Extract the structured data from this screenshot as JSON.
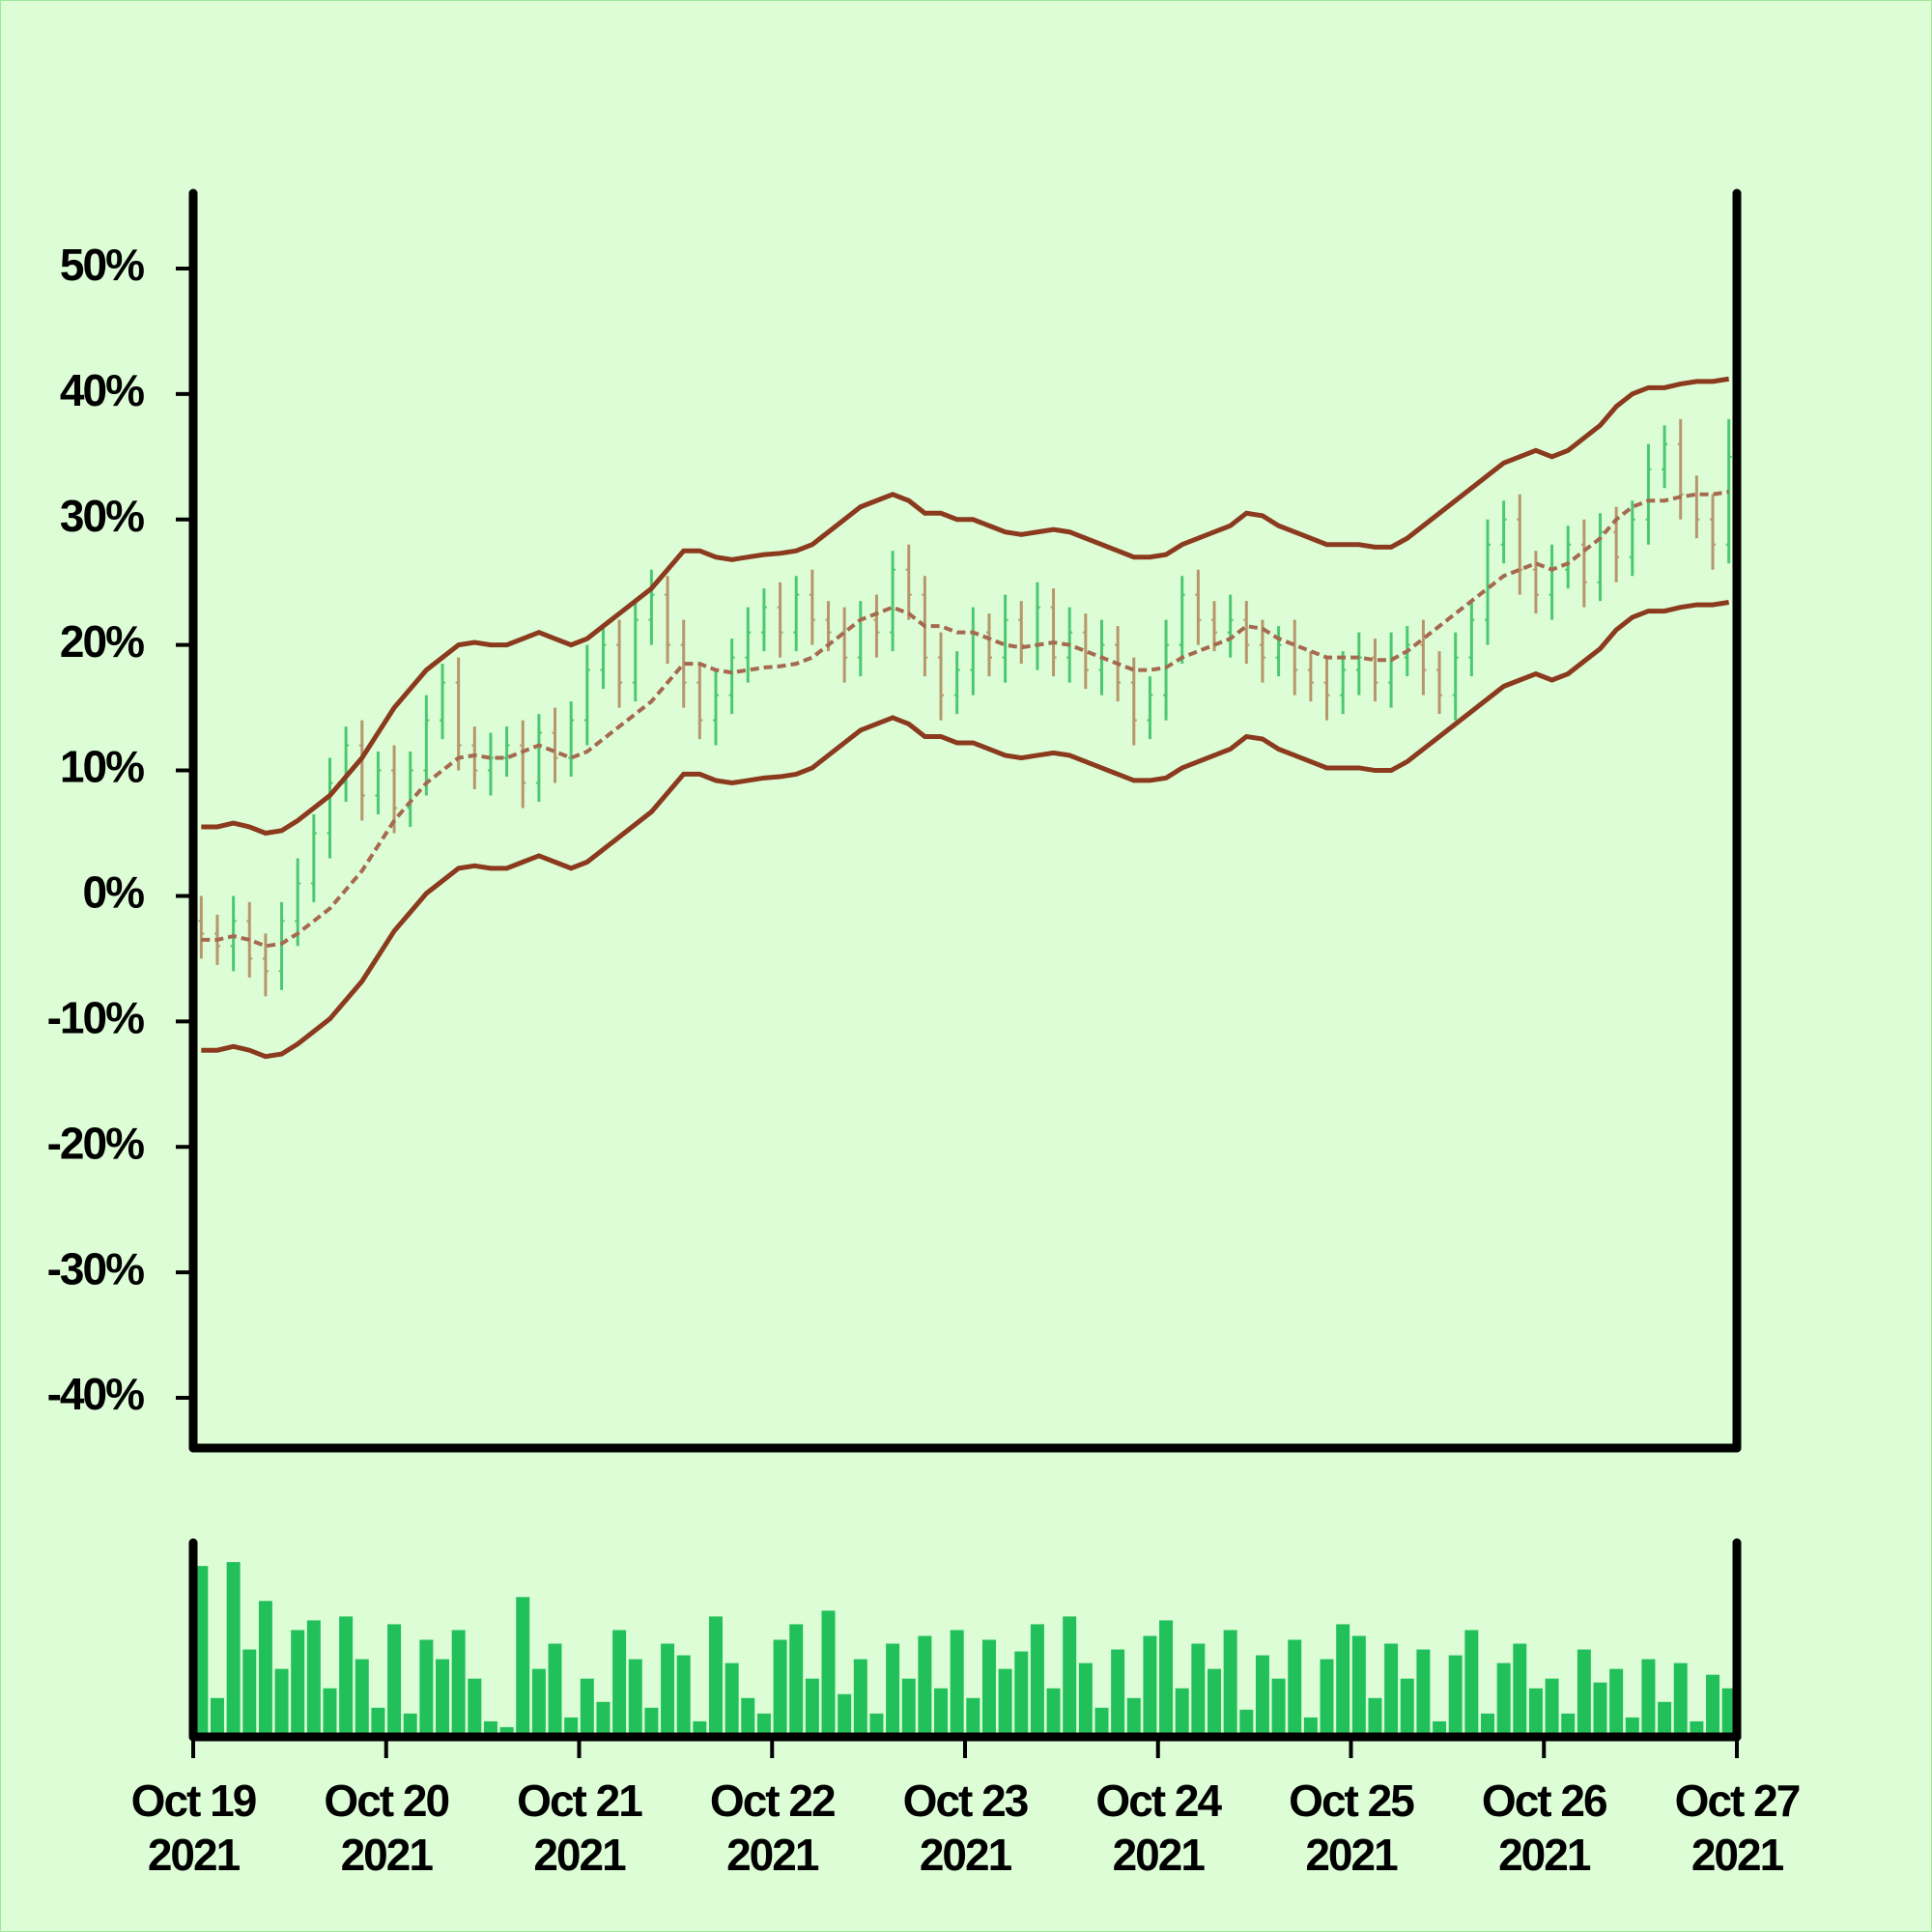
{
  "chart_data": {
    "type": "ohlc",
    "ylim": [
      -44,
      56
    ],
    "yticks": [
      {
        "value": -40,
        "label": "-40%"
      },
      {
        "value": -30,
        "label": "-30%"
      },
      {
        "value": -20,
        "label": "-20%"
      },
      {
        "value": -10,
        "label": "-10%"
      },
      {
        "value": 0,
        "label": "0%"
      },
      {
        "value": 10,
        "label": "10%"
      },
      {
        "value": 20,
        "label": "20%"
      },
      {
        "value": 30,
        "label": "30%"
      },
      {
        "value": 40,
        "label": "40%"
      },
      {
        "value": 50,
        "label": "50%"
      }
    ],
    "xlim": [
      0,
      8
    ],
    "xticks": [
      {
        "value": 0,
        "label": "Oct 19",
        "year": "2021"
      },
      {
        "value": 1,
        "label": "Oct 20",
        "year": "2021"
      },
      {
        "value": 2,
        "label": "Oct 21",
        "year": "2021"
      },
      {
        "value": 3,
        "label": "Oct 22",
        "year": "2021"
      },
      {
        "value": 4,
        "label": "Oct 23",
        "year": "2021"
      },
      {
        "value": 5,
        "label": "Oct 24",
        "year": "2021"
      },
      {
        "value": 6,
        "label": "Oct 25",
        "year": "2021"
      },
      {
        "value": 7,
        "label": "Oct 26",
        "year": "2021"
      },
      {
        "value": 8,
        "label": "Oct 27",
        "year": "2021"
      }
    ],
    "up_color": "#4cc873",
    "down_color": "#b8966c",
    "open": [
      -2,
      -3,
      -4,
      -2,
      -5,
      -6,
      -2,
      1,
      5,
      9,
      12,
      8,
      10,
      7,
      10,
      14,
      17,
      12,
      10,
      11,
      12,
      9,
      13,
      11,
      14,
      18,
      20,
      17,
      22,
      24,
      20,
      17,
      14,
      16,
      19,
      21,
      23,
      21,
      24,
      22,
      21,
      19,
      22,
      21,
      26,
      24,
      19,
      16,
      18,
      21,
      19,
      22,
      20,
      23,
      19,
      21,
      18,
      20,
      17,
      14,
      16,
      20,
      24,
      22,
      21,
      22,
      20,
      19,
      20,
      18,
      17,
      16,
      18,
      19,
      17,
      19,
      20,
      18,
      16,
      19,
      22,
      28,
      30,
      26,
      24,
      26,
      28,
      25,
      29,
      27,
      30,
      34,
      36,
      32,
      30,
      28
    ],
    "high": [
      0,
      -1.5,
      0,
      -0.5,
      -3,
      -0.5,
      3,
      6.5,
      11,
      13.5,
      14,
      11.5,
      12,
      11.5,
      16,
      18.5,
      19,
      13.5,
      13,
      13.5,
      14,
      14.5,
      15,
      15.5,
      20,
      21.5,
      22,
      23.5,
      26,
      25.5,
      22,
      18.5,
      18,
      20.5,
      23,
      24.5,
      25,
      25.5,
      26,
      23.5,
      23,
      23.5,
      24,
      27.5,
      28,
      25.5,
      21,
      19.5,
      23,
      22.5,
      24,
      23.5,
      25,
      24.5,
      23,
      22.5,
      22,
      21.5,
      19,
      17.5,
      22,
      25.5,
      26,
      23.5,
      24,
      23.5,
      22,
      21.5,
      22,
      19.5,
      19,
      19.5,
      21,
      20.5,
      21,
      21.5,
      22,
      19.5,
      21,
      23.5,
      30,
      31.5,
      32,
      27.5,
      28,
      29.5,
      30,
      30.5,
      31,
      31.5,
      36,
      37.5,
      38,
      33.5,
      32,
      38
    ],
    "low": [
      -5,
      -5.5,
      -6,
      -6.5,
      -8,
      -7.5,
      -4,
      -0.5,
      3,
      7.5,
      6,
      6.5,
      5,
      5.5,
      8,
      12.5,
      10,
      8.5,
      8,
      9.5,
      7,
      7.5,
      9,
      9.5,
      12,
      16.5,
      15,
      15.5,
      20,
      18.5,
      15,
      12.5,
      12,
      14.5,
      17,
      19.5,
      19,
      19.5,
      20,
      19.5,
      17,
      17.5,
      19,
      19.5,
      22,
      17.5,
      14,
      14.5,
      16,
      17.5,
      17,
      18.5,
      18,
      17.5,
      17,
      16.5,
      16,
      15.5,
      12,
      12.5,
      14,
      18.5,
      20,
      19.5,
      19,
      18.5,
      17,
      17.5,
      16,
      15.5,
      14,
      14.5,
      16,
      15.5,
      15,
      17.5,
      16,
      14.5,
      14,
      17.5,
      20,
      26.5,
      24,
      22.5,
      22,
      24.5,
      23,
      23.5,
      25,
      25.5,
      28,
      32.5,
      30,
      28.5,
      26,
      26.5
    ],
    "close": [
      -3,
      -4,
      -2,
      -5,
      -6,
      -2,
      1,
      5,
      9,
      12,
      8,
      10,
      7,
      10,
      14,
      17,
      12,
      10,
      11,
      12,
      9,
      13,
      11,
      14,
      18,
      20,
      17,
      22,
      24,
      20,
      17,
      14,
      16,
      19,
      21,
      23,
      21,
      24,
      22,
      21,
      19,
      22,
      21,
      26,
      24,
      19,
      16,
      18,
      21,
      19,
      22,
      20,
      23,
      19,
      21,
      18,
      20,
      17,
      14,
      16,
      20,
      24,
      22,
      21,
      22,
      20,
      19,
      20,
      18,
      17,
      16,
      18,
      19,
      17,
      19,
      20,
      18,
      16,
      19,
      22,
      28,
      30,
      26,
      24,
      26,
      28,
      25,
      29,
      27,
      30,
      34,
      36,
      32,
      30,
      28,
      35
    ],
    "overlays": [
      {
        "color": "#8b3a1e",
        "dashed": false,
        "values": [
          5.5,
          5.5,
          5.8,
          5.5,
          5,
          5.2,
          6,
          7,
          8,
          9.5,
          11,
          13,
          15,
          16.5,
          18,
          19,
          20,
          20.2,
          20,
          20,
          20.5,
          21,
          20.5,
          20,
          20.5,
          21.5,
          22.5,
          23.5,
          24.5,
          26,
          27.5,
          27.5,
          27,
          26.8,
          27,
          27.2,
          27.3,
          27.5,
          28,
          29,
          30,
          31,
          31.5,
          32,
          31.5,
          30.5,
          30.5,
          30,
          30,
          29.5,
          29,
          28.8,
          29,
          29.2,
          29,
          28.5,
          28,
          27.5,
          27,
          27,
          27.2,
          28,
          28.5,
          29,
          29.5,
          30.5,
          30.3,
          29.5,
          29,
          28.5,
          28,
          28,
          28,
          27.8,
          27.8,
          28.5,
          29.5,
          30.5,
          31.5,
          32.5,
          33.5,
          34.5,
          35,
          35.5,
          35,
          35.5,
          36.5,
          37.5,
          39,
          40,
          40.5,
          40.5,
          40.8,
          41,
          41,
          41.2
        ]
      },
      {
        "color": "#a5694f",
        "dashed": true,
        "values": [
          -3.5,
          -3.5,
          -3.2,
          -3.5,
          -4,
          -3.8,
          -3,
          -2,
          -1,
          0.5,
          2,
          4,
          6,
          7.5,
          9,
          10,
          11,
          11.2,
          11,
          11,
          11.5,
          12,
          11.5,
          11,
          11.5,
          12.5,
          13.5,
          14.5,
          15.5,
          17,
          18.5,
          18.5,
          18,
          17.8,
          18,
          18.2,
          18.3,
          18.5,
          19,
          20,
          21,
          22,
          22.5,
          23,
          22.5,
          21.5,
          21.5,
          21,
          21,
          20.5,
          20,
          19.8,
          20,
          20.2,
          20,
          19.5,
          19,
          18.5,
          18,
          18,
          18.2,
          19,
          19.5,
          20,
          20.5,
          21.5,
          21.3,
          20.5,
          20,
          19.5,
          19,
          19,
          19,
          18.8,
          18.8,
          19.5,
          20.5,
          21.5,
          22.5,
          23.5,
          24.5,
          25.5,
          26,
          26.5,
          26,
          26.5,
          27.5,
          28.5,
          30,
          31,
          31.5,
          31.5,
          31.8,
          32,
          32,
          32.2
        ]
      },
      {
        "color": "#8b3a1e",
        "dashed": false,
        "values": [
          -12.3,
          -12.3,
          -12,
          -12.3,
          -12.8,
          -12.6,
          -11.8,
          -10.8,
          -9.8,
          -8.3,
          -6.8,
          -4.8,
          -2.8,
          -1.3,
          0.2,
          1.2,
          2.2,
          2.4,
          2.2,
          2.2,
          2.7,
          3.2,
          2.7,
          2.2,
          2.7,
          3.7,
          4.7,
          5.7,
          6.7,
          8.2,
          9.7,
          9.7,
          9.2,
          9,
          9.2,
          9.4,
          9.5,
          9.7,
          10.2,
          11.2,
          12.2,
          13.2,
          13.7,
          14.2,
          13.7,
          12.7,
          12.7,
          12.2,
          12.2,
          11.7,
          11.2,
          11,
          11.2,
          11.4,
          11.2,
          10.7,
          10.2,
          9.7,
          9.2,
          9.2,
          9.4,
          10.2,
          10.7,
          11.2,
          11.7,
          12.7,
          12.5,
          11.7,
          11.2,
          10.7,
          10.2,
          10.2,
          10.2,
          10,
          10,
          10.7,
          11.7,
          12.7,
          13.7,
          14.7,
          15.7,
          16.7,
          17.2,
          17.7,
          17.2,
          17.7,
          18.7,
          19.7,
          21.2,
          22.2,
          22.7,
          22.7,
          23,
          23.2,
          23.2,
          23.4
        ]
      }
    ],
    "volume": {
      "color": "#22c05a",
      "ylim": [
        0,
        100
      ],
      "values": [
        88,
        20,
        90,
        45,
        70,
        35,
        55,
        60,
        25,
        62,
        40,
        15,
        58,
        12,
        50,
        40,
        55,
        30,
        8,
        5,
        72,
        35,
        48,
        10,
        30,
        18,
        55,
        40,
        15,
        48,
        42,
        8,
        62,
        38,
        20,
        12,
        50,
        58,
        30,
        65,
        22,
        40,
        12,
        48,
        30,
        52,
        25,
        55,
        20,
        50,
        35,
        44,
        58,
        25,
        62,
        38,
        15,
        45,
        20,
        52,
        60,
        25,
        48,
        35,
        55,
        14,
        42,
        30,
        50,
        10,
        40,
        58,
        52,
        20,
        48,
        30,
        45,
        8,
        42,
        55,
        12,
        38,
        48,
        25,
        30,
        12,
        45,
        28,
        35,
        10,
        40,
        18,
        38,
        8,
        32,
        25
      ]
    }
  }
}
